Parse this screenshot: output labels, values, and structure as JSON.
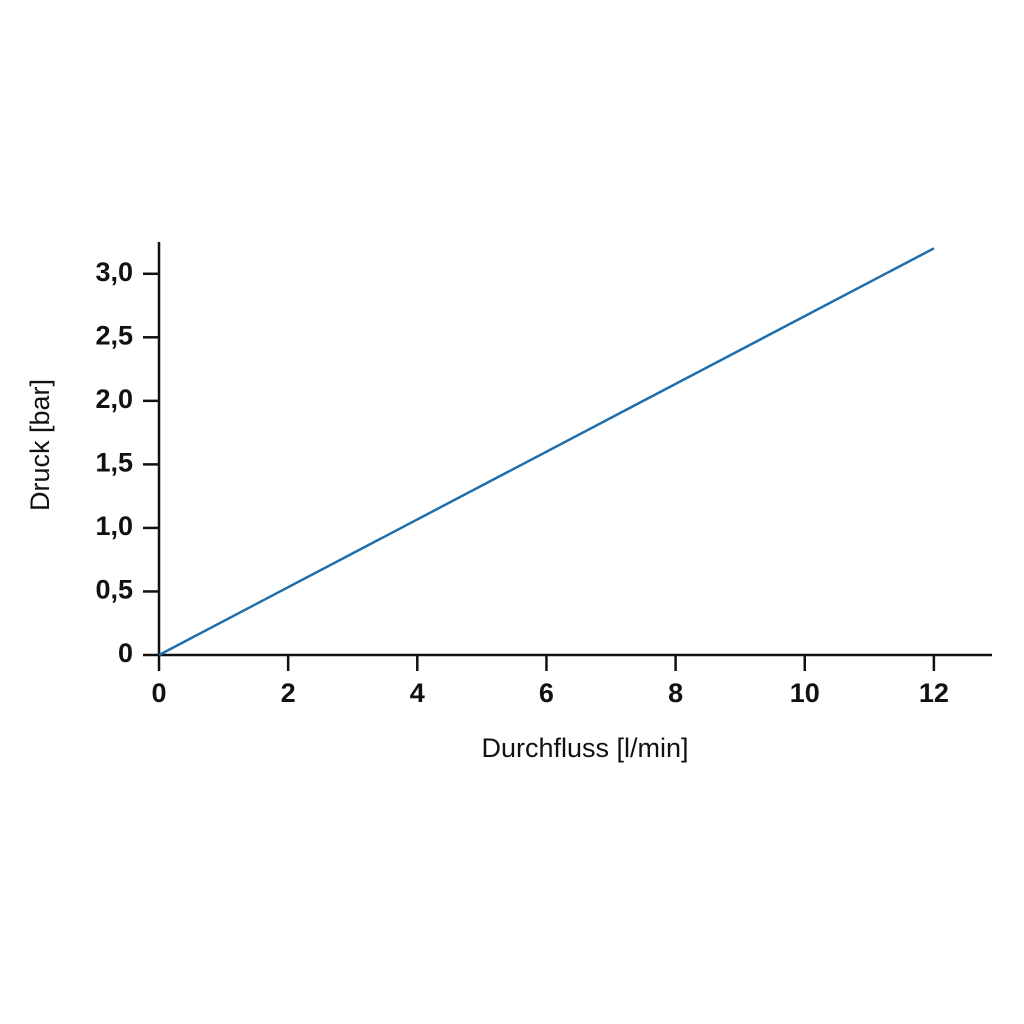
{
  "chart_data": {
    "type": "line",
    "x_label": "Durchfluss [l/min]",
    "y_label": "Druck [bar]",
    "x": [
      0,
      12
    ],
    "values": [
      0,
      3.2
    ],
    "color": "#1f6fad",
    "xlim": [
      0,
      12.9
    ],
    "ylim": [
      0,
      3.25
    ],
    "xticks": [
      0,
      2,
      4,
      6,
      8,
      10,
      12
    ],
    "yticks": [
      0,
      {
        "value": 0.5,
        "label": "0,5"
      },
      {
        "value": 1,
        "label": "1,0"
      },
      {
        "value": 1.5,
        "label": "1,5"
      },
      {
        "value": 2,
        "label": "2,0"
      },
      {
        "value": 2.5,
        "label": "2,5"
      },
      {
        "value": 3,
        "label": "3,0"
      }
    ],
    "grid": false
  }
}
